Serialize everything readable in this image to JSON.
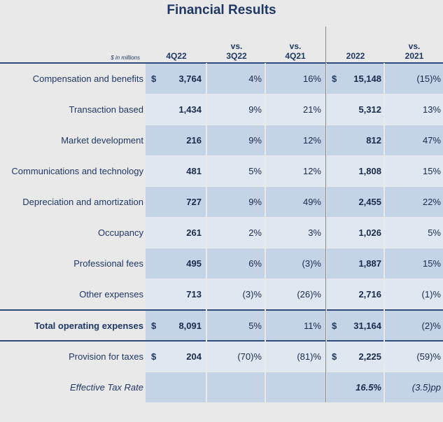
{
  "title": "Financial Results",
  "header": {
    "units": "$ in millions",
    "col1": "4Q22",
    "col2a": "vs.",
    "col2b": "3Q22",
    "col3a": "vs.",
    "col3b": "4Q21",
    "col4": "2022",
    "col5a": "vs.",
    "col5b": "2021"
  },
  "rows": [
    {
      "label": "Compensation and benefits",
      "d1": "$",
      "v1": "3,764",
      "v2": "4%",
      "v3": "16%",
      "d4": "$",
      "v4": "15,148",
      "v5": "(15)%"
    },
    {
      "label": "Transaction based",
      "d1": "",
      "v1": "1,434",
      "v2": "9%",
      "v3": "21%",
      "d4": "",
      "v4": "5,312",
      "v5": "13%"
    },
    {
      "label": "Market development",
      "d1": "",
      "v1": "216",
      "v2": "9%",
      "v3": "12%",
      "d4": "",
      "v4": "812",
      "v5": "47%"
    },
    {
      "label": "Communications and technology",
      "d1": "",
      "v1": "481",
      "v2": "5%",
      "v3": "12%",
      "d4": "",
      "v4": "1,808",
      "v5": "15%"
    },
    {
      "label": "Depreciation and amortization",
      "d1": "",
      "v1": "727",
      "v2": "9%",
      "v3": "49%",
      "d4": "",
      "v4": "2,455",
      "v5": "22%"
    },
    {
      "label": "Occupancy",
      "d1": "",
      "v1": "261",
      "v2": "2%",
      "v3": "3%",
      "d4": "",
      "v4": "1,026",
      "v5": "5%"
    },
    {
      "label": "Professional fees",
      "d1": "",
      "v1": "495",
      "v2": "6%",
      "v3": "(3)%",
      "d4": "",
      "v4": "1,887",
      "v5": "15%"
    },
    {
      "label": "Other expenses",
      "d1": "",
      "v1": "713",
      "v2": "(3)%",
      "v3": "(26)%",
      "d4": "",
      "v4": "2,716",
      "v5": "(1)%"
    },
    {
      "label": "Total operating expenses",
      "d1": "$",
      "v1": "8,091",
      "v2": "5%",
      "v3": "11%",
      "d4": "$",
      "v4": "31,164",
      "v5": "(2)%"
    },
    {
      "label": "Provision for taxes",
      "d1": "$",
      "v1": "204",
      "v2": "(70)%",
      "v3": "(81)%",
      "d4": "$",
      "v4": "2,225",
      "v5": "(59)%"
    },
    {
      "label": "Effective Tax Rate",
      "d1": "",
      "v1": "",
      "v2": "",
      "v3": "",
      "d4": "",
      "v4": "16.5%",
      "v5": "(3.5)pp"
    }
  ],
  "colors": {
    "dark_band": "#c5d3e6",
    "light_band": "#dfe7f1",
    "rule": "#2e4a7a",
    "text": "#1f3864"
  }
}
